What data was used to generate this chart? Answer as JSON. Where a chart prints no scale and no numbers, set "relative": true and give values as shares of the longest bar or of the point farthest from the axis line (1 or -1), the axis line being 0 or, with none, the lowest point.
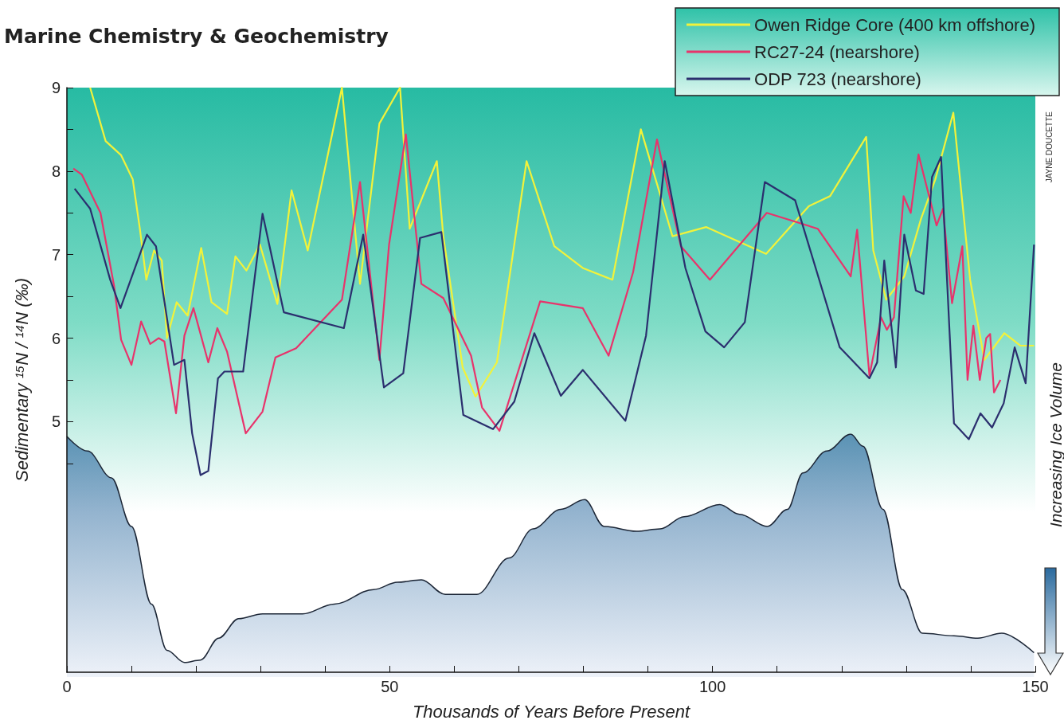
{
  "chart_data": [
    {
      "type": "line",
      "title": "Marine Chemistry & Geochemistry",
      "xlabel": "Thousands of Years Before Present",
      "ylabel": "Sedimentary ¹⁵N / ¹⁴N (‰)",
      "annotations": [
        "JAYNE DOUCETTE"
      ],
      "series": [
        {
          "name": "Owen Ridge Core (400 km offshore)",
          "color": "#f2f23a",
          "x": [
            3.6,
            6.0,
            8.4,
            10.2,
            11.3,
            12.3,
            13.5,
            14.7,
            15.5,
            17.0,
            18.7,
            20.8,
            22.4,
            24.8,
            26.1,
            27.8,
            29.9,
            32.6,
            34.8,
            37.3,
            42.6,
            45.4,
            48.4,
            51.6,
            53.1,
            57.3,
            58.3,
            61.3,
            63.3,
            66.6,
            71.2,
            75.5,
            79.9,
            84.5,
            88.9,
            93.8,
            99.0,
            108.3,
            114.9,
            118.2,
            123.8,
            124.9,
            126.9,
            129.7,
            132.3,
            134.5,
            137.3,
            139.9,
            142.1,
            145.2,
            147.7,
            149.8
          ],
          "values": [
            9.0,
            8.36,
            8.19,
            7.9,
            7.31,
            6.7,
            7.05,
            6.93,
            6.0,
            6.43,
            6.27,
            7.08,
            6.43,
            6.29,
            6.98,
            6.81,
            7.12,
            6.41,
            7.77,
            7.05,
            9.0,
            6.65,
            8.57,
            9.0,
            7.31,
            8.12,
            7.22,
            5.65,
            5.3,
            5.71,
            8.12,
            7.1,
            6.84,
            6.7,
            8.5,
            7.22,
            7.33,
            7.01,
            7.58,
            7.7,
            8.41,
            7.05,
            6.46,
            6.74,
            7.43,
            7.9,
            8.7,
            6.7,
            5.74,
            6.06,
            5.91,
            5.91
          ]
        },
        {
          "name": "RC27-24 (nearshore)",
          "color": "#e8336b",
          "x": [
            1.0,
            2.3,
            5.2,
            7.3,
            8.4,
            10.0,
            11.5,
            12.9,
            14.2,
            15.1,
            16.9,
            18.2,
            19.6,
            21.9,
            23.3,
            24.8,
            27.7,
            30.3,
            32.3,
            35.5,
            42.6,
            45.4,
            48.4,
            49.9,
            52.5,
            54.9,
            58.3,
            62.6,
            64.3,
            67.0,
            73.3,
            79.9,
            83.9,
            87.7,
            91.4,
            95.1,
            99.6,
            108.4,
            116.3,
            121.4,
            122.4,
            124.3,
            126.1,
            127.0,
            128.1,
            129.6,
            130.7,
            131.9,
            134.7,
            135.7,
            137.1,
            138.7,
            139.5,
            140.4,
            141.4,
            142.4,
            143.0,
            143.6,
            144.6
          ],
          "values": [
            8.03,
            7.96,
            7.5,
            6.63,
            5.98,
            5.68,
            6.2,
            5.93,
            6.0,
            5.96,
            5.1,
            6.03,
            6.36,
            5.71,
            6.12,
            5.84,
            4.86,
            5.12,
            5.77,
            5.88,
            6.46,
            7.87,
            5.74,
            7.12,
            8.44,
            6.65,
            6.48,
            5.79,
            5.17,
            4.89,
            6.44,
            6.36,
            5.79,
            6.79,
            8.38,
            7.1,
            6.7,
            7.5,
            7.31,
            6.74,
            7.3,
            5.55,
            6.25,
            6.1,
            6.25,
            7.7,
            7.5,
            8.2,
            7.35,
            7.55,
            6.42,
            7.1,
            5.5,
            6.15,
            5.5,
            6.0,
            6.05,
            5.35,
            5.5
          ]
        },
        {
          "name": "ODP 723 (nearshore)",
          "color": "#2b2f6e",
          "x": [
            1.2,
            3.6,
            6.7,
            8.3,
            12.4,
            13.8,
            16.6,
            18.2,
            19.4,
            20.7,
            21.9,
            23.4,
            24.4,
            27.3,
            30.3,
            33.6,
            42.9,
            45.9,
            49.1,
            52.1,
            54.7,
            58.0,
            61.4,
            66.0,
            69.3,
            72.4,
            76.5,
            79.9,
            86.5,
            89.7,
            92.6,
            95.8,
            98.9,
            101.8,
            105.0,
            108.1,
            112.8,
            119.7,
            124.3,
            125.5,
            126.6,
            128.4,
            129.7,
            131.5,
            132.7,
            134.0,
            135.4,
            137.4,
            139.7,
            141.5,
            143.3,
            145.1,
            146.8,
            148.5,
            149.8
          ],
          "values": [
            7.79,
            7.55,
            6.7,
            6.36,
            7.24,
            7.1,
            5.68,
            5.74,
            4.86,
            4.36,
            4.41,
            5.52,
            5.6,
            5.6,
            7.49,
            6.31,
            6.12,
            7.24,
            5.41,
            5.58,
            7.2,
            7.27,
            5.08,
            4.91,
            5.24,
            6.06,
            5.31,
            5.62,
            5.01,
            6.03,
            8.12,
            6.84,
            6.08,
            5.89,
            6.19,
            7.87,
            7.65,
            5.89,
            5.52,
            5.71,
            6.93,
            5.65,
            7.24,
            6.57,
            6.53,
            7.93,
            8.17,
            4.98,
            4.79,
            5.1,
            4.93,
            5.22,
            5.89,
            5.46,
            7.12
          ]
        }
      ],
      "xlim": [
        0,
        150
      ],
      "xticks": [
        0,
        {
          "value": 10,
          "label": null
        },
        {
          "value": 20,
          "label": null
        },
        {
          "value": 30,
          "label": null
        },
        {
          "value": 40,
          "label": null
        },
        50,
        {
          "value": 60,
          "label": null
        },
        {
          "value": 70,
          "label": null
        },
        {
          "value": 80,
          "label": null
        },
        {
          "value": 90,
          "label": null
        },
        100,
        {
          "value": 110,
          "label": null
        },
        {
          "value": 120,
          "label": null
        },
        {
          "value": 130,
          "label": null
        },
        {
          "value": 140,
          "label": null
        },
        150
      ],
      "ylim": [
        2,
        9
      ],
      "yticks": [
        {
          "value": 4.5,
          "label": null
        },
        5,
        {
          "value": 5.5,
          "label": null
        },
        6,
        {
          "value": 6.5,
          "label": null
        },
        7,
        {
          "value": 7.5,
          "label": null
        },
        8,
        {
          "value": 8.5,
          "label": null
        },
        9
      ],
      "legend": "top right",
      "grid": false,
      "marker": "none"
    },
    {
      "type": "area",
      "ylabel": "Increasing Ice Volume",
      "relative": true,
      "color": "#2a6a9e",
      "xlim": [
        0,
        150
      ],
      "tick_labels": false,
      "x": [
        0,
        3.2,
        6.9,
        10.0,
        13.1,
        15.5,
        18.2,
        20.7,
        23.5,
        26.6,
        30.3,
        36.5,
        41.4,
        47.5,
        51.2,
        54.9,
        58.6,
        63.5,
        68.5,
        72.2,
        76.5,
        80.2,
        83.2,
        88.2,
        91.9,
        95.6,
        101.1,
        104.2,
        108.5,
        111.6,
        114.0,
        117.7,
        121.4,
        123.3,
        126.4,
        129.4,
        132.5,
        137.4,
        141.1,
        144.8,
        149.8
      ],
      "values": [
        0.99,
        0.93,
        0.82,
        0.62,
        0.3,
        0.11,
        0.06,
        0.07,
        0.16,
        0.24,
        0.26,
        0.26,
        0.3,
        0.36,
        0.39,
        0.4,
        0.34,
        0.34,
        0.49,
        0.61,
        0.69,
        0.73,
        0.62,
        0.6,
        0.61,
        0.66,
        0.71,
        0.67,
        0.62,
        0.69,
        0.84,
        0.93,
        1.0,
        0.95,
        0.69,
        0.36,
        0.18,
        0.17,
        0.16,
        0.18,
        0.1
      ]
    }
  ]
}
